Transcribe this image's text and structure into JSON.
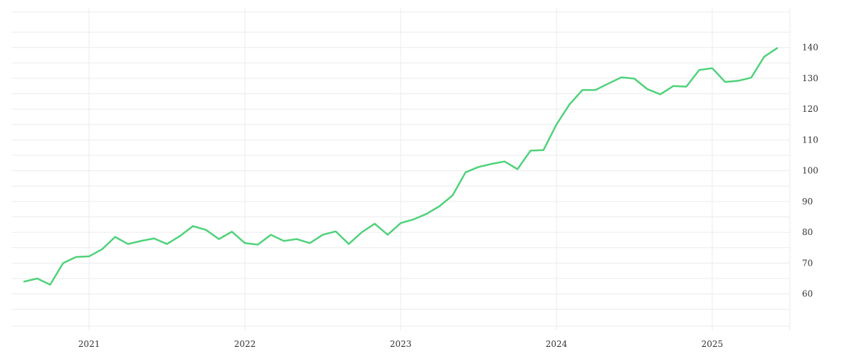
{
  "chart_data": {
    "type": "line",
    "title": "",
    "xlabel": "",
    "ylabel": "",
    "grid": true,
    "line_color": "#4fd27a",
    "grid_color": "#ebebeb",
    "x_tick_labels": [
      "2021",
      "2022",
      "2023",
      "2024",
      "2025"
    ],
    "y_ticks": [
      60,
      70,
      80,
      90,
      100,
      110,
      120,
      130,
      140
    ],
    "ylim": [
      49.5,
      151.5
    ],
    "x_start": "2020-08",
    "x_end": "2025-06",
    "x": [
      "2020-08",
      "2020-09",
      "2020-10",
      "2020-11",
      "2020-12",
      "2021-01",
      "2021-02",
      "2021-03",
      "2021-04",
      "2021-05",
      "2021-06",
      "2021-07",
      "2021-08",
      "2021-09",
      "2021-10",
      "2021-11",
      "2021-12",
      "2022-01",
      "2022-02",
      "2022-03",
      "2022-04",
      "2022-05",
      "2022-06",
      "2022-07",
      "2022-08",
      "2022-09",
      "2022-10",
      "2022-11",
      "2022-12",
      "2023-01",
      "2023-02",
      "2023-03",
      "2023-04",
      "2023-05",
      "2023-06",
      "2023-07",
      "2023-08",
      "2023-09",
      "2023-10",
      "2023-11",
      "2023-12",
      "2024-01",
      "2024-02",
      "2024-03",
      "2024-04",
      "2024-05",
      "2024-06",
      "2024-07",
      "2024-08",
      "2024-09",
      "2024-10",
      "2024-11",
      "2024-12",
      "2025-01",
      "2025-02",
      "2025-03",
      "2025-04",
      "2025-05",
      "2025-06"
    ],
    "series": [
      {
        "values": [
          64.0,
          65.0,
          63.0,
          70.0,
          72.0,
          72.2,
          74.5,
          78.5,
          76.2,
          77.2,
          78.0,
          76.2,
          78.8,
          82.0,
          80.8,
          77.8,
          80.2,
          76.5,
          76.0,
          79.2,
          77.2,
          77.8,
          76.5,
          79.2,
          80.3,
          76.2,
          80.0,
          82.8,
          79.2,
          83.0,
          84.2,
          86.0,
          88.5,
          92.0,
          99.5,
          101.2,
          102.2,
          103.0,
          100.5,
          106.5,
          106.7,
          115.0,
          121.5,
          126.2,
          126.2,
          128.3,
          130.3,
          129.9,
          126.5,
          124.8,
          127.5,
          127.3,
          132.7,
          133.3,
          128.8,
          129.2,
          130.2,
          137.0,
          139.8
        ]
      }
    ]
  }
}
